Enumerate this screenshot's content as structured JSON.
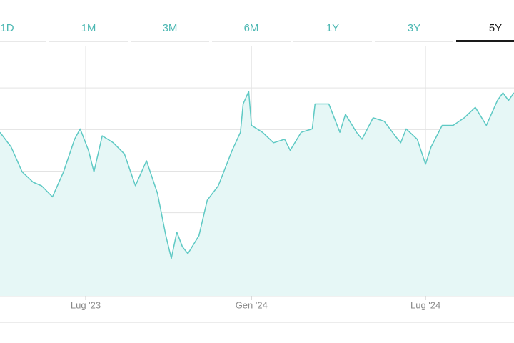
{
  "tabs": [
    "1D",
    "1M",
    "3M",
    "6M",
    "1Y",
    "3Y",
    "5Y"
  ],
  "selected_tab": "5Y",
  "chart_data": {
    "type": "area",
    "color": "#5ec9c4",
    "fill": "#e6f7f6",
    "grid": true,
    "xlim": [
      0,
      18.6
    ],
    "xticks": [
      {
        "value": 3.1,
        "label": "Lug '23"
      },
      {
        "value": 9.1,
        "label": "Gen '24"
      },
      {
        "value": 15.4,
        "label": "Lug '24"
      }
    ],
    "ylim": [
      0,
      360
    ],
    "yticks": [
      0,
      60,
      120,
      180,
      240,
      300
    ],
    "x": [
      0.0,
      0.4,
      0.8,
      1.2,
      1.5,
      1.9,
      2.3,
      2.7,
      2.9,
      3.2,
      3.4,
      3.7,
      4.1,
      4.5,
      4.9,
      5.3,
      5.7,
      6.0,
      6.2,
      6.4,
      6.6,
      6.8,
      7.2,
      7.5,
      7.9,
      8.4,
      8.7,
      8.8,
      9.0,
      9.1,
      9.5,
      9.9,
      10.3,
      10.5,
      10.9,
      11.3,
      11.4,
      11.9,
      12.3,
      12.5,
      12.9,
      13.1,
      13.5,
      13.9,
      14.3,
      14.5,
      14.7,
      15.1,
      15.4,
      15.6,
      16.0,
      16.4,
      16.8,
      17.2,
      17.6,
      18.0,
      18.2,
      18.4,
      18.6
    ],
    "values": [
      236,
      215,
      179,
      164,
      159,
      143,
      179,
      226,
      241,
      210,
      179,
      231,
      221,
      205,
      159,
      195,
      148,
      87,
      54,
      92,
      71,
      61,
      87,
      138,
      159,
      210,
      236,
      277,
      295,
      246,
      236,
      221,
      226,
      210,
      236,
      241,
      277,
      277,
      236,
      262,
      236,
      226,
      257,
      252,
      231,
      221,
      241,
      226,
      190,
      215,
      246,
      246,
      257,
      272,
      246,
      282,
      293,
      282,
      293
    ]
  }
}
